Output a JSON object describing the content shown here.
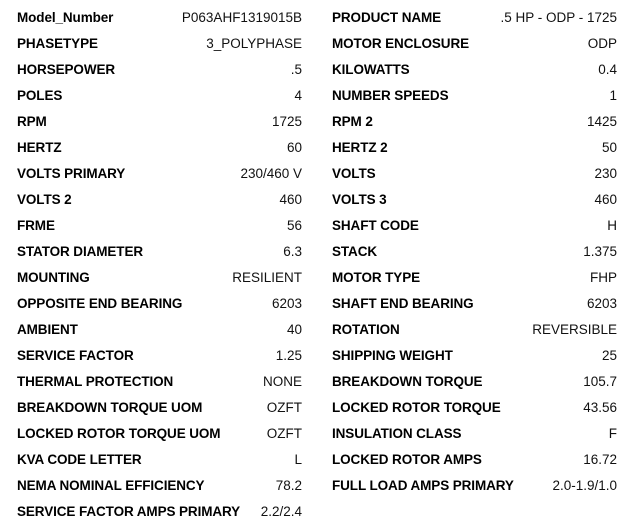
{
  "left": [
    {
      "label": "Model_Number",
      "value": "P063AHF1319015B"
    },
    {
      "label": "PHASETYPE",
      "value": "3_POLYPHASE"
    },
    {
      "label": "HORSEPOWER",
      "value": ".5"
    },
    {
      "label": "POLES",
      "value": "4"
    },
    {
      "label": "RPM",
      "value": "1725"
    },
    {
      "label": "HERTZ",
      "value": "60"
    },
    {
      "label": "VOLTS PRIMARY",
      "value": "230/460 V"
    },
    {
      "label": "VOLTS 2",
      "value": "460"
    },
    {
      "label": "FRME",
      "value": "56"
    },
    {
      "label": "STATOR DIAMETER",
      "value": "6.3"
    },
    {
      "label": "MOUNTING",
      "value": "RESILIENT"
    },
    {
      "label": "OPPOSITE END BEARING",
      "value": "6203"
    },
    {
      "label": "AMBIENT",
      "value": "40"
    },
    {
      "label": "SERVICE FACTOR",
      "value": "1.25"
    },
    {
      "label": "THERMAL PROTECTION",
      "value": "NONE"
    },
    {
      "label": "BREAKDOWN TORQUE UOM",
      "value": "OZFT"
    },
    {
      "label": "LOCKED ROTOR TORQUE UOM",
      "value": "OZFT"
    },
    {
      "label": "KVA CODE LETTER",
      "value": "L"
    },
    {
      "label": "NEMA NOMINAL EFFICIENCY",
      "value": "78.2"
    },
    {
      "label": "SERVICE FACTOR AMPS PRIMARY",
      "value": "2.2/2.4"
    }
  ],
  "right": [
    {
      "label": "PRODUCT NAME",
      "value": ".5 HP - ODP - 1725"
    },
    {
      "label": "MOTOR ENCLOSURE",
      "value": "ODP"
    },
    {
      "label": "KILOWATTS",
      "value": "0.4"
    },
    {
      "label": "NUMBER SPEEDS",
      "value": "1"
    },
    {
      "label": "RPM 2",
      "value": "1425"
    },
    {
      "label": "HERTZ 2",
      "value": "50"
    },
    {
      "label": "VOLTS",
      "value": "230"
    },
    {
      "label": "VOLTS 3",
      "value": "460"
    },
    {
      "label": "SHAFT CODE",
      "value": "H"
    },
    {
      "label": "STACK",
      "value": "1.375"
    },
    {
      "label": "MOTOR TYPE",
      "value": "FHP"
    },
    {
      "label": "SHAFT END BEARING",
      "value": "6203"
    },
    {
      "label": "ROTATION",
      "value": "REVERSIBLE"
    },
    {
      "label": "SHIPPING WEIGHT",
      "value": "25"
    },
    {
      "label": "BREAKDOWN TORQUE",
      "value": "105.7"
    },
    {
      "label": "LOCKED ROTOR TORQUE",
      "value": "43.56"
    },
    {
      "label": "INSULATION CLASS",
      "value": "F"
    },
    {
      "label": "LOCKED ROTOR AMPS",
      "value": "16.72"
    },
    {
      "label": "FULL LOAD AMPS PRIMARY",
      "value": "2.0-1.9/1.0"
    }
  ]
}
